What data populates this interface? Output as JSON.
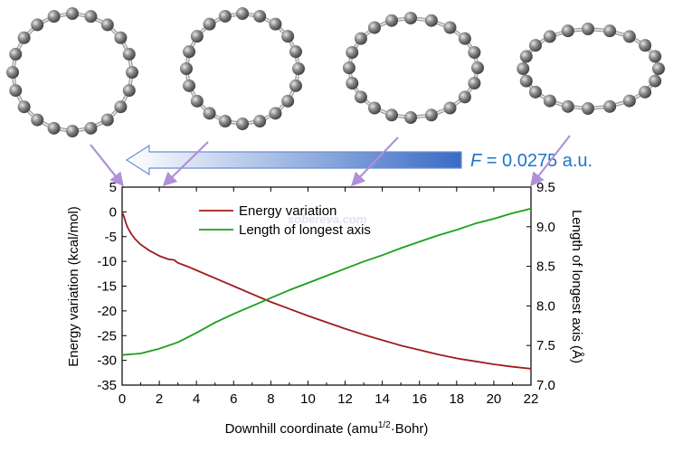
{
  "field_label": {
    "symbol": "F",
    "value_text": " = 0.0275 a.u.",
    "color": "#1f73c8"
  },
  "watermark": "sobereva.com",
  "molecules": [
    {
      "name": "ring-start",
      "shape": "circle"
    },
    {
      "name": "ring-early",
      "shape": "circle"
    },
    {
      "name": "ring-mid",
      "shape": "slightly-elongated"
    },
    {
      "name": "ring-end",
      "shape": "elongated"
    }
  ],
  "arrow_colors": {
    "pointer": "#b090d8",
    "gradient_start": "#ffffff",
    "gradient_end": "#3a6bc5"
  },
  "chart_data": {
    "type": "line",
    "title": "",
    "xlabel_main": "Downhill coordinate (amu",
    "xlabel_sup": "1/2",
    "xlabel_tail": "·Bohr)",
    "ylabel_left": "Energy variation (kcal/mol)",
    "ylabel_right": "Length of longest axis (Å)",
    "xlim": [
      0,
      22
    ],
    "ylim_left": [
      -35,
      5
    ],
    "ylim_right": [
      7.0,
      9.5
    ],
    "xticks": [
      0,
      2,
      4,
      6,
      8,
      10,
      12,
      14,
      16,
      18,
      20,
      22
    ],
    "xtick_labels": [
      "0",
      "2",
      "4",
      "6",
      "8",
      "10",
      "12",
      "14",
      "16",
      "18",
      "20",
      "22"
    ],
    "yticks_left": [
      5,
      0,
      -5,
      -10,
      -15,
      -20,
      -25,
      -30,
      -35
    ],
    "ytick_labels_left": [
      "5",
      "0",
      "-5",
      "-10",
      "-15",
      "-20",
      "-25",
      "-30",
      "-35"
    ],
    "yticks_right": [
      9.5,
      9.0,
      8.5,
      8.0,
      7.5,
      7.0
    ],
    "ytick_labels_right": [
      "9.5",
      "9.0",
      "8.5",
      "8.0",
      "7.5",
      "7.0"
    ],
    "legend_position": "top-left",
    "series": [
      {
        "name": "Energy variation",
        "axis": "left",
        "color": "#a01c1c",
        "x": [
          0,
          0.1,
          0.2,
          0.3,
          0.5,
          0.7,
          1.0,
          1.5,
          2.0,
          2.5,
          2.8,
          3.0,
          3.5,
          4.0,
          5.0,
          6.0,
          7.0,
          8.0,
          9.0,
          10.0,
          11.0,
          12.0,
          13.0,
          14.0,
          15.0,
          16.0,
          17.0,
          18.0,
          19.0,
          20.0,
          21.0,
          22.0
        ],
        "y": [
          0,
          -1.0,
          -2.2,
          -3.2,
          -4.5,
          -5.5,
          -6.6,
          -7.9,
          -8.9,
          -9.6,
          -9.7,
          -10.3,
          -11.0,
          -11.8,
          -13.4,
          -15.0,
          -16.6,
          -18.2,
          -19.6,
          -21.0,
          -22.3,
          -23.6,
          -24.8,
          -25.9,
          -27.0,
          -27.9,
          -28.8,
          -29.6,
          -30.2,
          -30.8,
          -31.3,
          -31.7
        ]
      },
      {
        "name": "Length of longest axis",
        "axis": "right",
        "color": "#1aa01a",
        "x": [
          0,
          1.0,
          2.0,
          3.0,
          4.0,
          5.0,
          6.0,
          7.0,
          8.0,
          9.0,
          10.0,
          11.0,
          12.0,
          13.0,
          14.0,
          15.0,
          16.0,
          17.0,
          18.0,
          19.0,
          20.0,
          21.0,
          22.0
        ],
        "y": [
          7.38,
          7.4,
          7.46,
          7.54,
          7.66,
          7.79,
          7.9,
          8.0,
          8.1,
          8.2,
          8.29,
          8.38,
          8.47,
          8.56,
          8.64,
          8.73,
          8.81,
          8.89,
          8.96,
          9.04,
          9.1,
          9.17,
          9.23
        ]
      }
    ]
  }
}
